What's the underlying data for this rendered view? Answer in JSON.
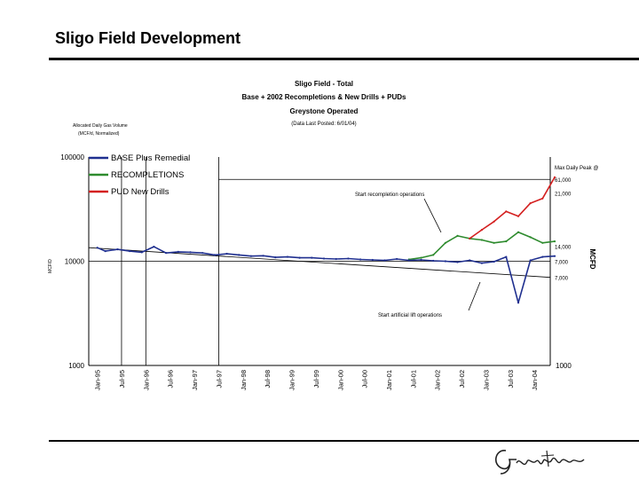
{
  "slide": {
    "title": "Sligo Field Development",
    "logo_text": "Greystone"
  },
  "chart_data": {
    "type": "line",
    "title_lines": [
      "Sligo Field - Total",
      "Base + 2002 Recompletions & New Drills + PUDs",
      "Greystone Operated"
    ],
    "subtitle": "(Data Last Posted: 6/01/04)",
    "note_lines": [
      "Allocated Daily Gas Volume",
      "(MCF/d, Normalized)"
    ],
    "y_scale": "log",
    "ylim": [
      1000,
      100000
    ],
    "y_ticks_left": [
      "100000",
      "10000",
      "1000"
    ],
    "y_ticks_right": [
      "1000"
    ],
    "ylabel_left": "MCF/D",
    "ylabel_right": "MCFD",
    "x_tick_labels": [
      "Jan-95",
      "Jul-95",
      "Jan-96",
      "Jul-96",
      "Jan-97",
      "Jul-97",
      "Jan-98",
      "Jul-98",
      "Jan-99",
      "Jul-99",
      "Jan-00",
      "Jul-00",
      "Jan-01",
      "Jul-01",
      "Jan-02",
      "Jul-02",
      "Jan-03",
      "Jul-03",
      "Jan-04"
    ],
    "legend": [
      "BASE Plus Remedial",
      "RECOMPLETIONS",
      "PUD New Drills"
    ],
    "legend_position": "top-left",
    "colors": {
      "base": "#1f2f8f",
      "recompletions": "#2e8b2e",
      "pud": "#d42020"
    },
    "series": [
      {
        "name": "BASE Plus Remedial",
        "x": [
          "1995-01",
          "1995-03",
          "1995-06",
          "1995-09",
          "1995-12",
          "1996-03",
          "1996-06",
          "1996-09",
          "1996-12",
          "1997-03",
          "1997-06",
          "1997-09",
          "1997-12",
          "1998-03",
          "1998-06",
          "1998-09",
          "1998-12",
          "1999-03",
          "1999-06",
          "1999-09",
          "1999-12",
          "2000-03",
          "2000-06",
          "2000-09",
          "2000-12",
          "2001-03",
          "2001-06",
          "2001-09",
          "2001-12",
          "2002-03",
          "2002-06",
          "2002-09",
          "2002-12",
          "2003-03",
          "2003-06",
          "2003-09",
          "2003-12",
          "2004-03",
          "2004-06"
        ],
        "y": [
          13500,
          12500,
          13000,
          12500,
          12200,
          13800,
          12000,
          12300,
          12200,
          12000,
          11500,
          11800,
          11500,
          11200,
          11300,
          10900,
          11000,
          10800,
          10800,
          10600,
          10500,
          10600,
          10400,
          10300,
          10200,
          10500,
          10200,
          10300,
          10100,
          10000,
          9800,
          10200,
          9600,
          9900,
          11000,
          4000,
          10200,
          11000,
          11200
        ]
      },
      {
        "name": "RECOMPLETIONS",
        "x": [
          "2001-06",
          "2001-09",
          "2001-12",
          "2002-03",
          "2002-06",
          "2002-09",
          "2002-12",
          "2003-03",
          "2003-06",
          "2003-09",
          "2003-12",
          "2004-03",
          "2004-06"
        ],
        "y": [
          10400,
          10800,
          11500,
          15000,
          17500,
          16500,
          16000,
          15000,
          15500,
          19000,
          17000,
          15000,
          15500
        ]
      },
      {
        "name": "PUD New Drills",
        "x": [
          "2002-09",
          "2002-12",
          "2003-03",
          "2003-06",
          "2003-09",
          "2003-12",
          "2004-03",
          "2004-06"
        ],
        "y": [
          16500,
          20000,
          24000,
          30000,
          27000,
          36000,
          40000,
          64000
        ]
      }
    ],
    "reference_lines": [
      {
        "label": "Max Daily Peak @",
        "value": "61,000",
        "y": 61000
      },
      {
        "label": "",
        "value": "21,000",
        "y": 45000
      },
      {
        "label": "",
        "value": "14,000",
        "y": 14000
      },
      {
        "label": "",
        "value": "7,000",
        "y": 10000
      },
      {
        "label": "",
        "value": "7,000",
        "y": 7000
      }
    ],
    "annotations": [
      "Start recompletion operations",
      "Start artificial lift operations"
    ]
  }
}
